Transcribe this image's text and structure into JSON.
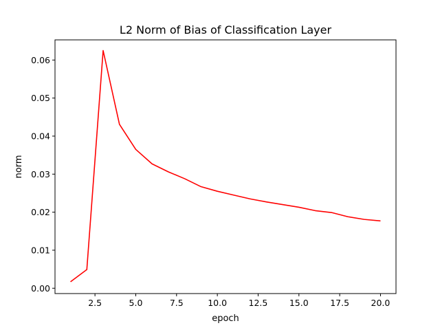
{
  "chart_data": {
    "type": "line",
    "title": "L2 Norm of Bias of Classification Layer",
    "xlabel": "epoch",
    "ylabel": "norm",
    "xlim": [
      0.05,
      20.95
    ],
    "ylim": [
      -0.0014,
      0.0653
    ],
    "xticks": [
      2.5,
      5.0,
      7.5,
      10.0,
      12.5,
      15.0,
      17.5,
      20.0
    ],
    "xtick_labels": [
      "2.5",
      "5.0",
      "7.5",
      "10.0",
      "12.5",
      "15.0",
      "17.5",
      "20.0"
    ],
    "yticks": [
      0.0,
      0.01,
      0.02,
      0.03,
      0.04,
      0.05,
      0.06
    ],
    "ytick_labels": [
      "0.00",
      "0.01",
      "0.02",
      "0.03",
      "0.04",
      "0.05",
      "0.06"
    ],
    "grid": false,
    "series": [
      {
        "color": "#ff0000",
        "x": [
          1,
          2,
          3,
          4,
          5,
          6,
          7,
          8,
          9,
          10,
          11,
          12,
          13,
          14,
          15,
          16,
          17,
          18,
          19,
          20
        ],
        "y": [
          0.0017,
          0.0049,
          0.0625,
          0.0431,
          0.0365,
          0.0327,
          0.0306,
          0.0288,
          0.0267,
          0.0255,
          0.0245,
          0.0235,
          0.0227,
          0.022,
          0.0213,
          0.0204,
          0.0199,
          0.0188,
          0.0181,
          0.0177
        ]
      }
    ]
  }
}
